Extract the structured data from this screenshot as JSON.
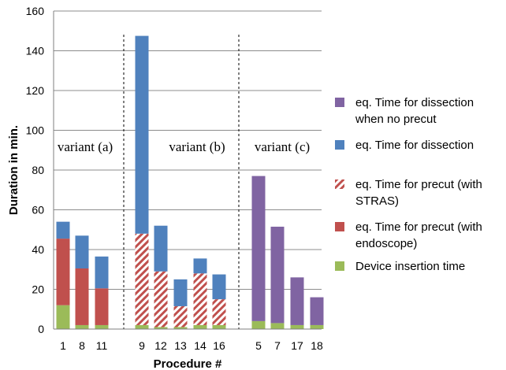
{
  "chart_data": {
    "type": "bar",
    "stacked": true,
    "xlabel": "Procedure #",
    "ylabel": "Duration in min.",
    "ylim": [
      0,
      160
    ],
    "yticks": [
      0,
      20,
      40,
      60,
      80,
      100,
      120,
      140,
      160
    ],
    "grid": true,
    "legend_position": "right",
    "groups": [
      {
        "label": "variant (a)",
        "categories": [
          "1",
          "8",
          "11"
        ]
      },
      {
        "label": "variant (b)",
        "categories": [
          "9",
          "12",
          "13",
          "14",
          "16"
        ]
      },
      {
        "label": "variant (c)",
        "categories": [
          "5",
          "7",
          "17",
          "18"
        ]
      }
    ],
    "categories": [
      "1",
      "8",
      "11",
      "9",
      "12",
      "13",
      "14",
      "16",
      "5",
      "7",
      "17",
      "18"
    ],
    "series": [
      {
        "name": "Device insertion time",
        "color": "#9bbb59",
        "pattern": "solid",
        "values": [
          12,
          2,
          2,
          2,
          1,
          1,
          2,
          2,
          4,
          3,
          2,
          2
        ]
      },
      {
        "name": "eq. Time for precut (with endoscope)",
        "color": "#c0504d",
        "pattern": "solid",
        "values": [
          33.5,
          28.5,
          18.5,
          0,
          0,
          0,
          0,
          0,
          0,
          0,
          0,
          0
        ]
      },
      {
        "name": "eq. Time for precut (with STRAS)",
        "color": "#c0504d",
        "pattern": "hatched",
        "values": [
          0,
          0,
          0,
          46,
          28,
          10.5,
          26,
          13,
          0,
          0,
          0,
          0
        ]
      },
      {
        "name": "eq. Time for dissection",
        "color": "#4f81bd",
        "pattern": "solid",
        "values": [
          8.5,
          16.5,
          16,
          99.5,
          23,
          13.5,
          7.5,
          12.5,
          0,
          0,
          0,
          0
        ]
      },
      {
        "name": "eq. Time for dissection when no precut",
        "color": "#8064a2",
        "pattern": "solid",
        "values": [
          0,
          0,
          0,
          0,
          0,
          0,
          0,
          0,
          73,
          48.5,
          24,
          14
        ]
      }
    ],
    "legend": [
      {
        "series": 4,
        "lines": [
          "eq. Time for dissection",
          "when no precut"
        ]
      },
      {
        "series": 3,
        "lines": [
          "eq. Time for dissection"
        ]
      },
      {
        "series": 2,
        "lines": [
          "eq. Time for precut (with",
          "STRAS)"
        ]
      },
      {
        "series": 1,
        "lines": [
          "eq. Time for precut (with",
          "endoscope)"
        ]
      },
      {
        "series": 0,
        "lines": [
          "Device insertion time"
        ]
      }
    ]
  }
}
